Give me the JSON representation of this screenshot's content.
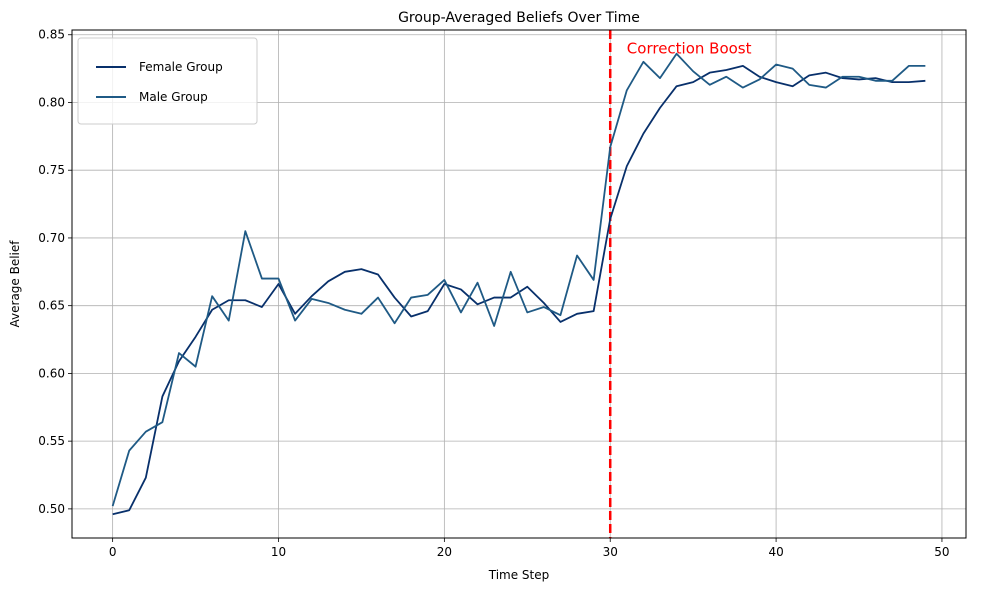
{
  "chart_data": {
    "type": "line",
    "title": "Group-Averaged Beliefs Over Time",
    "xlabel": "Time Step",
    "ylabel": "Average Belief",
    "xlim": [
      -2.45,
      51.45
    ],
    "ylim": [
      0.4785,
      0.8535
    ],
    "xticks": [
      0,
      10,
      20,
      30,
      40,
      50
    ],
    "xtick_labels": [
      "0",
      "10",
      "20",
      "30",
      "40",
      "50"
    ],
    "yticks": [
      0.5,
      0.55,
      0.6,
      0.65,
      0.7,
      0.75,
      0.8,
      0.85
    ],
    "ytick_labels": [
      "0.50",
      "0.55",
      "0.60",
      "0.65",
      "0.70",
      "0.75",
      "0.80",
      "0.85"
    ],
    "grid": true,
    "legend_position": "top-left",
    "x": [
      0,
      1,
      2,
      3,
      4,
      5,
      6,
      7,
      8,
      9,
      10,
      11,
      12,
      13,
      14,
      15,
      16,
      17,
      18,
      19,
      20,
      21,
      22,
      23,
      24,
      25,
      26,
      27,
      28,
      29,
      30,
      31,
      32,
      33,
      34,
      35,
      36,
      37,
      38,
      39,
      40,
      41,
      42,
      43,
      44,
      45,
      46,
      47,
      48,
      49
    ],
    "series": [
      {
        "name": "Female Group",
        "color": "#08306b",
        "values": [
          0.496,
          0.499,
          0.523,
          0.583,
          0.609,
          0.627,
          0.647,
          0.654,
          0.654,
          0.649,
          0.666,
          0.644,
          0.657,
          0.668,
          0.675,
          0.677,
          0.673,
          0.656,
          0.642,
          0.646,
          0.666,
          0.662,
          0.651,
          0.656,
          0.656,
          0.664,
          0.652,
          0.638,
          0.644,
          0.646,
          0.714,
          0.753,
          0.777,
          0.796,
          0.812,
          0.815,
          0.822,
          0.824,
          0.827,
          0.819,
          0.815,
          0.812,
          0.82,
          0.822,
          0.818,
          0.817,
          0.818,
          0.815,
          0.815,
          0.816
        ]
      },
      {
        "name": "Male Group",
        "color": "#1f5a85",
        "values": [
          0.502,
          0.543,
          0.557,
          0.564,
          0.615,
          0.605,
          0.657,
          0.639,
          0.705,
          0.67,
          0.67,
          0.639,
          0.655,
          0.652,
          0.647,
          0.644,
          0.656,
          0.637,
          0.656,
          0.658,
          0.669,
          0.645,
          0.667,
          0.635,
          0.675,
          0.645,
          0.649,
          0.643,
          0.687,
          0.669,
          0.767,
          0.809,
          0.83,
          0.818,
          0.836,
          0.823,
          0.813,
          0.819,
          0.811,
          0.817,
          0.828,
          0.825,
          0.813,
          0.811,
          0.819,
          0.819,
          0.816,
          0.816,
          0.827,
          0.827
        ]
      }
    ],
    "annotations": [
      {
        "type": "vline",
        "x": 30,
        "color": "#ff0000",
        "style": "dashed",
        "label": "Correction Boost",
        "label_x": 31,
        "label_y": 0.84
      }
    ]
  }
}
